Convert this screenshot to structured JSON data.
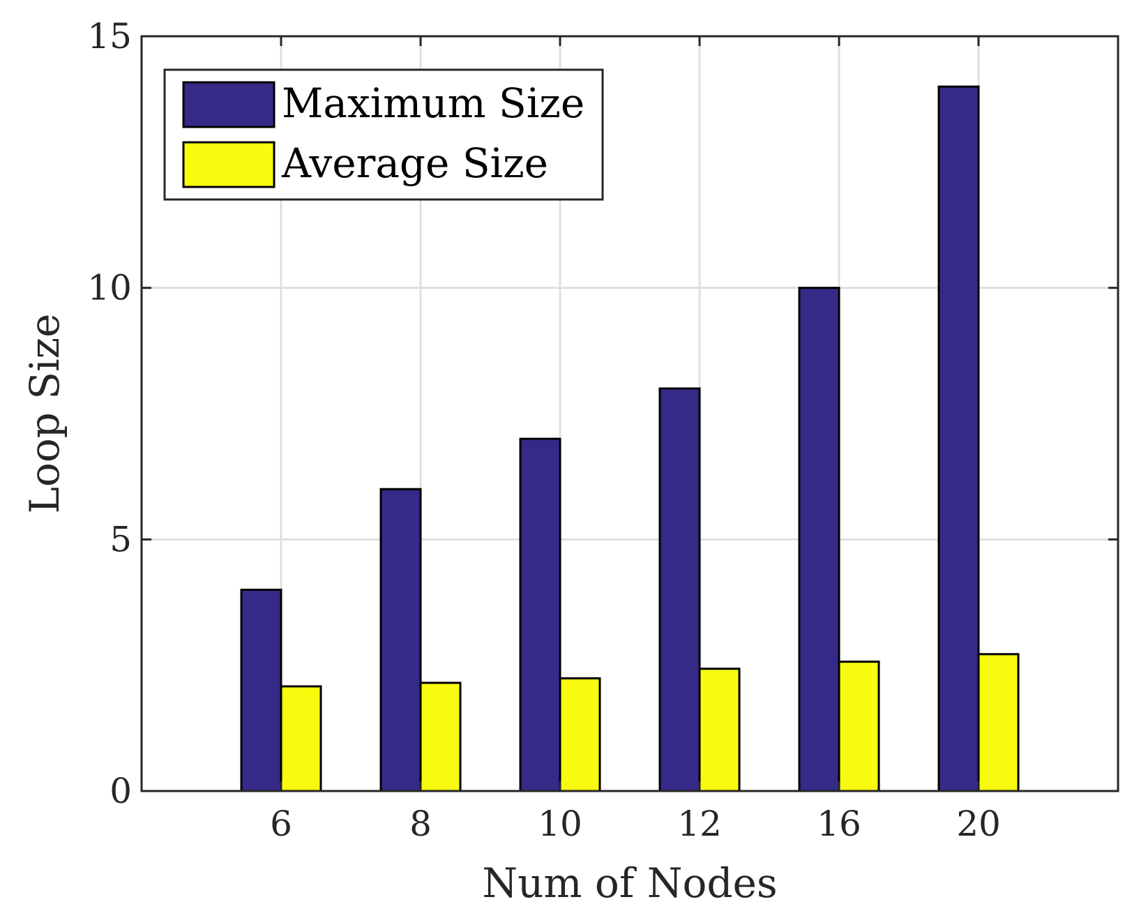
{
  "chart_data": {
    "type": "bar",
    "title": "",
    "xlabel": "Num of Nodes",
    "ylabel": "Loop Size",
    "categories": [
      "6",
      "8",
      "10",
      "12",
      "16",
      "20"
    ],
    "x": [
      1,
      2,
      3,
      4,
      5,
      6
    ],
    "xlim": [
      0,
      7
    ],
    "ylim": [
      0,
      15
    ],
    "yticks": [
      0,
      5,
      10,
      15
    ],
    "ytick_labels": [
      "0",
      "5",
      "10",
      "15"
    ],
    "grid": true,
    "legend_position": "top-left",
    "series": [
      {
        "name": "Maximum Size",
        "color": "#352A87",
        "values": [
          4,
          6,
          7,
          8,
          10,
          14
        ]
      },
      {
        "name": "Average Size",
        "color": "#F9FB0E",
        "values": [
          2.08,
          2.15,
          2.24,
          2.43,
          2.57,
          2.72
        ]
      }
    ]
  }
}
